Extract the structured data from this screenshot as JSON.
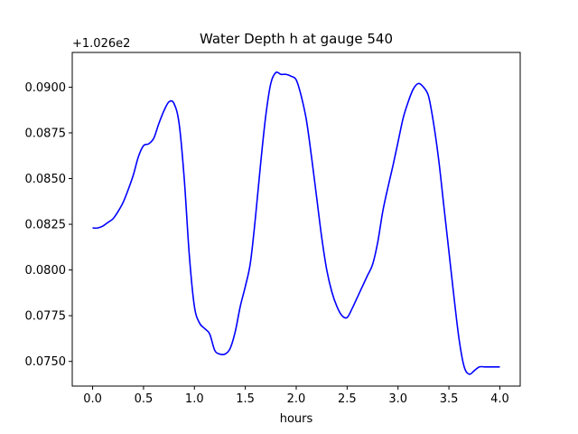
{
  "chart_data": {
    "type": "line",
    "title": "Water Depth h at gauge 540",
    "xlabel": "hours",
    "ylabel": "",
    "y_offset_label": "+1.026e2",
    "xlim": [
      -0.2,
      4.2
    ],
    "ylim": [
      0.07365,
      0.0919
    ],
    "x_ticks": [
      0.0,
      0.5,
      1.0,
      1.5,
      2.0,
      2.5,
      3.0,
      3.5,
      4.0
    ],
    "x_tick_labels": [
      "0.0",
      "0.5",
      "1.0",
      "1.5",
      "2.0",
      "2.5",
      "3.0",
      "3.5",
      "4.0"
    ],
    "y_ticks": [
      0.075,
      0.0775,
      0.08,
      0.0825,
      0.085,
      0.0875,
      0.09
    ],
    "y_tick_labels": [
      "0.0750",
      "0.0775",
      "0.0800",
      "0.0825",
      "0.0850",
      "0.0875",
      "0.0900"
    ],
    "grid": false,
    "series": [
      {
        "color": "#0000ff",
        "x": [
          0.0,
          0.05,
          0.1,
          0.15,
          0.2,
          0.25,
          0.3,
          0.35,
          0.4,
          0.45,
          0.5,
          0.55,
          0.6,
          0.65,
          0.7,
          0.75,
          0.8,
          0.85,
          0.9,
          0.95,
          1.0,
          1.05,
          1.1,
          1.15,
          1.2,
          1.25,
          1.3,
          1.35,
          1.4,
          1.45,
          1.5,
          1.55,
          1.6,
          1.65,
          1.7,
          1.75,
          1.8,
          1.85,
          1.9,
          1.95,
          2.0,
          2.05,
          2.1,
          2.15,
          2.2,
          2.25,
          2.3,
          2.35,
          2.4,
          2.45,
          2.5,
          2.55,
          2.6,
          2.65,
          2.7,
          2.75,
          2.8,
          2.85,
          2.9,
          2.95,
          3.0,
          3.05,
          3.1,
          3.15,
          3.2,
          3.25,
          3.3,
          3.35,
          3.4,
          3.45,
          3.5,
          3.55,
          3.6,
          3.65,
          3.7,
          3.75,
          3.8,
          3.85,
          3.9,
          3.95,
          4.0
        ],
        "y": [
          0.0823,
          0.0823,
          0.0824,
          0.0826,
          0.0828,
          0.0832,
          0.0837,
          0.0844,
          0.0852,
          0.0862,
          0.0868,
          0.0869,
          0.0872,
          0.088,
          0.0887,
          0.0892,
          0.0891,
          0.088,
          0.085,
          0.0808,
          0.078,
          0.0771,
          0.0768,
          0.0765,
          0.0756,
          0.0754,
          0.0754,
          0.0757,
          0.0766,
          0.078,
          0.0791,
          0.0804,
          0.0829,
          0.0858,
          0.0884,
          0.0902,
          0.0908,
          0.0907,
          0.0907,
          0.0906,
          0.0904,
          0.0895,
          0.0882,
          0.0862,
          0.084,
          0.0818,
          0.08,
          0.0788,
          0.078,
          0.0775,
          0.0774,
          0.0779,
          0.0785,
          0.0791,
          0.0797,
          0.0803,
          0.0815,
          0.0832,
          0.0845,
          0.0857,
          0.087,
          0.0883,
          0.0892,
          0.0899,
          0.0902,
          0.09,
          0.0895,
          0.088,
          0.086,
          0.0835,
          0.081,
          0.0785,
          0.0762,
          0.0747,
          0.0743,
          0.0745,
          0.0747,
          0.0747,
          0.0747,
          0.0747,
          0.0747
        ]
      }
    ]
  }
}
